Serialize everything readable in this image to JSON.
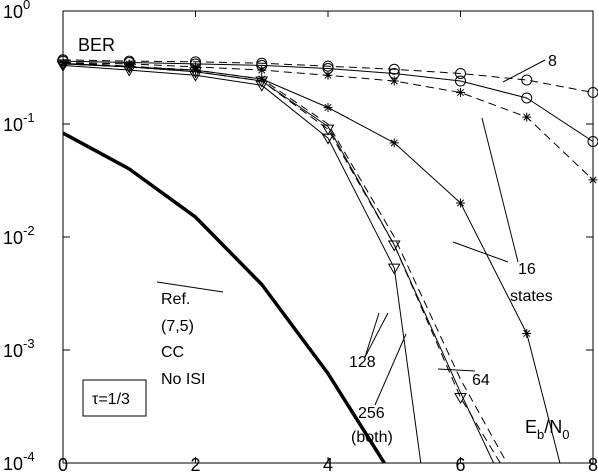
{
  "chart_data": {
    "type": "line",
    "title": "",
    "xlabel": "",
    "ylabel": "",
    "xlim": [
      0,
      8
    ],
    "ylim": [
      0.0001,
      1
    ],
    "yscale": "log",
    "grid": false,
    "x_ticks": [
      0,
      2,
      4,
      6,
      8
    ],
    "y_ticks": [
      {
        "value": 1,
        "base": "10",
        "exp": "0"
      },
      {
        "value": 0.1,
        "base": "10",
        "exp": "-1"
      },
      {
        "value": 0.01,
        "base": "10",
        "exp": "-2"
      },
      {
        "value": 0.001,
        "base": "10",
        "exp": "-3"
      },
      {
        "value": 0.0001,
        "base": "10",
        "exp": "-4"
      }
    ],
    "series": [
      {
        "style": "solid",
        "marker": "circle",
        "width": 1,
        "x": [
          0,
          1,
          2,
          3,
          4,
          5,
          6,
          7,
          8
        ],
        "y": [
          0.36,
          0.35,
          0.34,
          0.33,
          0.31,
          0.28,
          0.24,
          0.17,
          0.07
        ]
      },
      {
        "style": "dashed",
        "marker": "circle",
        "width": 1,
        "x": [
          0,
          1,
          2,
          3,
          4,
          5,
          6,
          7,
          8
        ],
        "y": [
          0.37,
          0.36,
          0.355,
          0.345,
          0.325,
          0.305,
          0.28,
          0.245,
          0.19
        ]
      },
      {
        "style": "solid",
        "marker": "star",
        "width": 1,
        "x": [
          0,
          1,
          2,
          3,
          4,
          5,
          6,
          7,
          7.5
        ],
        "y": [
          0.34,
          0.32,
          0.3,
          0.25,
          0.14,
          0.068,
          0.02,
          0.0014,
          0.0001
        ]
      },
      {
        "style": "dashed",
        "marker": "star",
        "width": 1,
        "x": [
          0,
          1,
          2,
          3,
          4,
          5,
          6,
          7,
          8
        ],
        "y": [
          0.35,
          0.34,
          0.32,
          0.3,
          0.27,
          0.24,
          0.19,
          0.115,
          0.032
        ]
      },
      {
        "style": "solid",
        "marker": "triangle",
        "width": 1,
        "x": [
          0,
          1,
          2,
          3,
          4,
          5,
          5.4
        ],
        "y": [
          0.33,
          0.3,
          0.27,
          0.22,
          0.075,
          0.0053,
          0.0001
        ]
      },
      {
        "style": "dashed",
        "marker": "triangle",
        "width": 1,
        "x": [
          0,
          1,
          2,
          3,
          4,
          5,
          6,
          6.6
        ],
        "y": [
          0.34,
          0.32,
          0.29,
          0.24,
          0.09,
          0.0085,
          0.00038,
          0.0001
        ]
      },
      {
        "style": "solid",
        "marker": "none",
        "width": 1,
        "x": [
          0,
          1,
          2,
          3,
          4,
          5,
          6,
          6.5
        ],
        "y": [
          0.345,
          0.32,
          0.29,
          0.24,
          0.095,
          0.0085,
          0.00042,
          0.0001
        ]
      },
      {
        "style": "dashed",
        "marker": "none",
        "width": 1,
        "x": [
          0,
          1,
          2,
          3,
          4,
          5,
          6,
          6.7
        ],
        "y": [
          0.35,
          0.325,
          0.3,
          0.25,
          0.1,
          0.01,
          0.00055,
          0.0001
        ]
      },
      {
        "style": "solid",
        "marker": "none",
        "width": 3.5,
        "x": [
          0,
          1,
          2,
          3,
          4,
          4.85
        ],
        "y": [
          0.083,
          0.04,
          0.015,
          0.0038,
          0.00062,
          0.0001
        ]
      }
    ],
    "annotations": {
      "ber": "BER",
      "eight": "8",
      "sixteen": "16",
      "states": "states",
      "n128": "128",
      "n64": "64",
      "n256": "256",
      "both": "(both)",
      "ref1": "Ref.",
      "ref2": "(7,5)",
      "ref3": "CC",
      "ref4": "No ISI",
      "tau": "τ=1/3",
      "axis_e": "E",
      "axis_b": "b",
      "axis_slash": "/N",
      "axis_0": "0"
    }
  }
}
